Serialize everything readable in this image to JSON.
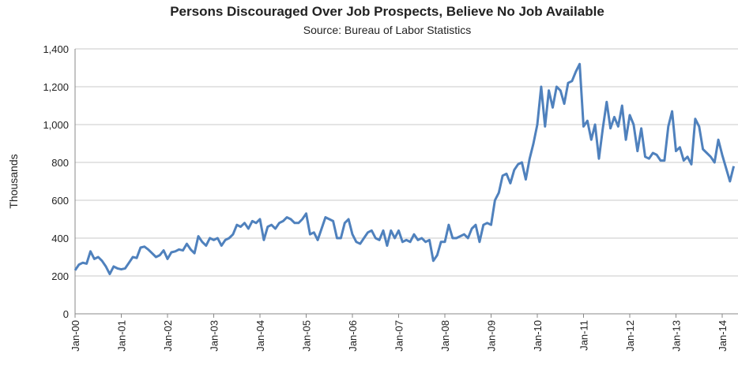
{
  "chart_data": {
    "type": "line",
    "title": "Persons Discouraged Over Job Prospects, Believe No Job Available",
    "subtitle": "Source: Bureau of Labor Statistics",
    "y_label": "Thousands",
    "categories": [
      "Jan-00",
      null,
      null,
      null,
      null,
      null,
      null,
      null,
      null,
      null,
      null,
      null,
      "Jan-01",
      null,
      null,
      null,
      null,
      null,
      null,
      null,
      null,
      null,
      null,
      null,
      "Jan-02",
      null,
      null,
      null,
      null,
      null,
      null,
      null,
      null,
      null,
      null,
      null,
      "Jan-03",
      null,
      null,
      null,
      null,
      null,
      null,
      null,
      null,
      null,
      null,
      null,
      "Jan-04",
      null,
      null,
      null,
      null,
      null,
      null,
      null,
      null,
      null,
      null,
      null,
      "Jan-05",
      null,
      null,
      null,
      null,
      null,
      null,
      null,
      null,
      null,
      null,
      null,
      "Jan-06",
      null,
      null,
      null,
      null,
      null,
      null,
      null,
      null,
      null,
      null,
      null,
      "Jan-07",
      null,
      null,
      null,
      null,
      null,
      null,
      null,
      null,
      null,
      null,
      null,
      "Jan-08",
      null,
      null,
      null,
      null,
      null,
      null,
      null,
      null,
      null,
      null,
      null,
      "Jan-09",
      null,
      null,
      null,
      null,
      null,
      null,
      null,
      null,
      null,
      null,
      null,
      "Jan-10",
      null,
      null,
      null,
      null,
      null,
      null,
      null,
      null,
      null,
      null,
      null,
      "Jan-11",
      null,
      null,
      null,
      null,
      null,
      null,
      null,
      null,
      null,
      null,
      null,
      "Jan-12",
      null,
      null,
      null,
      null,
      null,
      null,
      null,
      null,
      null,
      null,
      null,
      "Jan-13",
      null,
      null,
      null,
      null,
      null,
      null,
      null,
      null,
      null,
      null,
      null,
      "Jan-14",
      null,
      null,
      null
    ],
    "series": [
      {
        "name": "Discouraged",
        "color": "#4f81bd",
        "values": [
          230,
          260,
          270,
          265,
          330,
          290,
          300,
          280,
          250,
          210,
          250,
          240,
          235,
          240,
          270,
          300,
          295,
          350,
          355,
          340,
          320,
          300,
          310,
          335,
          290,
          325,
          330,
          340,
          335,
          370,
          340,
          320,
          410,
          380,
          360,
          400,
          390,
          400,
          360,
          390,
          400,
          420,
          470,
          460,
          480,
          450,
          490,
          480,
          500,
          390,
          460,
          470,
          450,
          480,
          490,
          510,
          500,
          480,
          480,
          500,
          530,
          420,
          430,
          390,
          450,
          510,
          500,
          490,
          400,
          400,
          480,
          500,
          420,
          380,
          370,
          400,
          430,
          440,
          400,
          390,
          440,
          360,
          440,
          400,
          440,
          380,
          390,
          380,
          420,
          390,
          400,
          380,
          390,
          280,
          310,
          380,
          380,
          470,
          400,
          400,
          410,
          420,
          400,
          450,
          470,
          380,
          470,
          480,
          470,
          600,
          640,
          730,
          740,
          690,
          760,
          790,
          800,
          710,
          820,
          900,
          1000,
          1200,
          990,
          1180,
          1090,
          1200,
          1180,
          1110,
          1220,
          1230,
          1280,
          1320,
          990,
          1020,
          920,
          1000,
          820,
          980,
          1120,
          980,
          1040,
          990,
          1100,
          920,
          1050,
          1000,
          860,
          980,
          830,
          820,
          850,
          840,
          810,
          810,
          990,
          1070,
          860,
          880,
          810,
          830,
          790,
          1030,
          990,
          870,
          850,
          830,
          800,
          920,
          840,
          770,
          700,
          780
        ]
      }
    ],
    "ylim": [
      0,
      1400
    ],
    "yticks": [
      0,
      200,
      400,
      600,
      800,
      {
        "value": 1000,
        "label": "1,000"
      },
      {
        "value": 1200,
        "label": "1,200"
      },
      {
        "value": 1400,
        "label": "1,400"
      }
    ],
    "grid": true
  }
}
